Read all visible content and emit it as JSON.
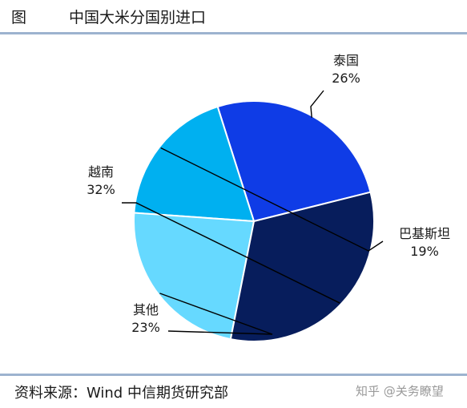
{
  "header": {
    "figure_label": "图",
    "title": "中国大米分国别进口"
  },
  "chart_data": {
    "type": "pie",
    "title": "中国大米分国别进口",
    "slices": [
      {
        "label": "泰国",
        "value": 26,
        "display": "26%",
        "color": "#0f3ce6"
      },
      {
        "label": "巴基斯坦",
        "value": 19,
        "display": "19%",
        "color": "#00b0f0"
      },
      {
        "label": "其他",
        "value": 23,
        "display": "23%",
        "color": "#66d9ff"
      },
      {
        "label": "越南",
        "value": 32,
        "display": "32%",
        "color": "#071d5c"
      }
    ],
    "start_angle_deg": 14,
    "legend": "none"
  },
  "footer": {
    "source": "资料来源：Wind  中信期货研究部",
    "watermark": "知乎 @关务瞭望"
  }
}
